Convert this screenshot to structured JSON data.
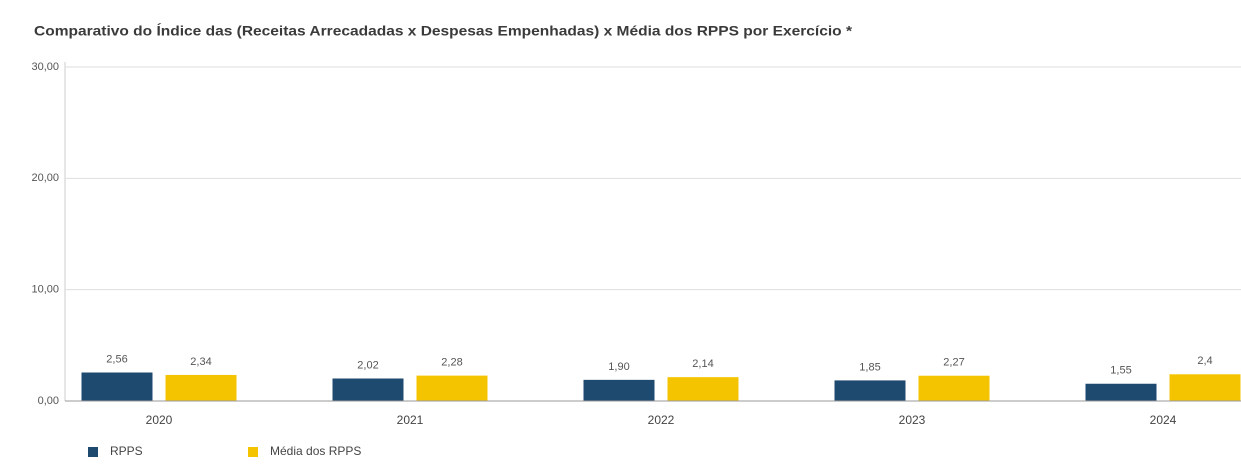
{
  "chart_data": {
    "type": "bar",
    "title": "Comparativo do Índice das (Receitas Arrecadadas x Despesas Empenhadas) x Média dos RPPS por Exercício *",
    "categories": [
      "2020",
      "2021",
      "2022",
      "2023",
      "2024"
    ],
    "series": [
      {
        "name": "RPPS",
        "color": "#1f4a70",
        "values": [
          2.56,
          2.02,
          1.9,
          1.85,
          1.55
        ],
        "value_labels": [
          "2,56",
          "2,02",
          "1,90",
          "1,85",
          "1,55"
        ]
      },
      {
        "name": "Média dos RPPS",
        "color": "#f5c400",
        "values": [
          2.34,
          2.28,
          2.14,
          2.27,
          2.4
        ],
        "value_labels": [
          "2,34",
          "2,28",
          "2,14",
          "2,27",
          "2,4"
        ]
      }
    ],
    "ylim": [
      0,
      30
    ],
    "yticks": [
      {
        "value": 0,
        "label": "0,00"
      },
      {
        "value": 10,
        "label": "10,00"
      },
      {
        "value": 20,
        "label": "20,00"
      },
      {
        "value": 30,
        "label": "30,00"
      }
    ],
    "grid": true,
    "legend": "bottom-left"
  }
}
